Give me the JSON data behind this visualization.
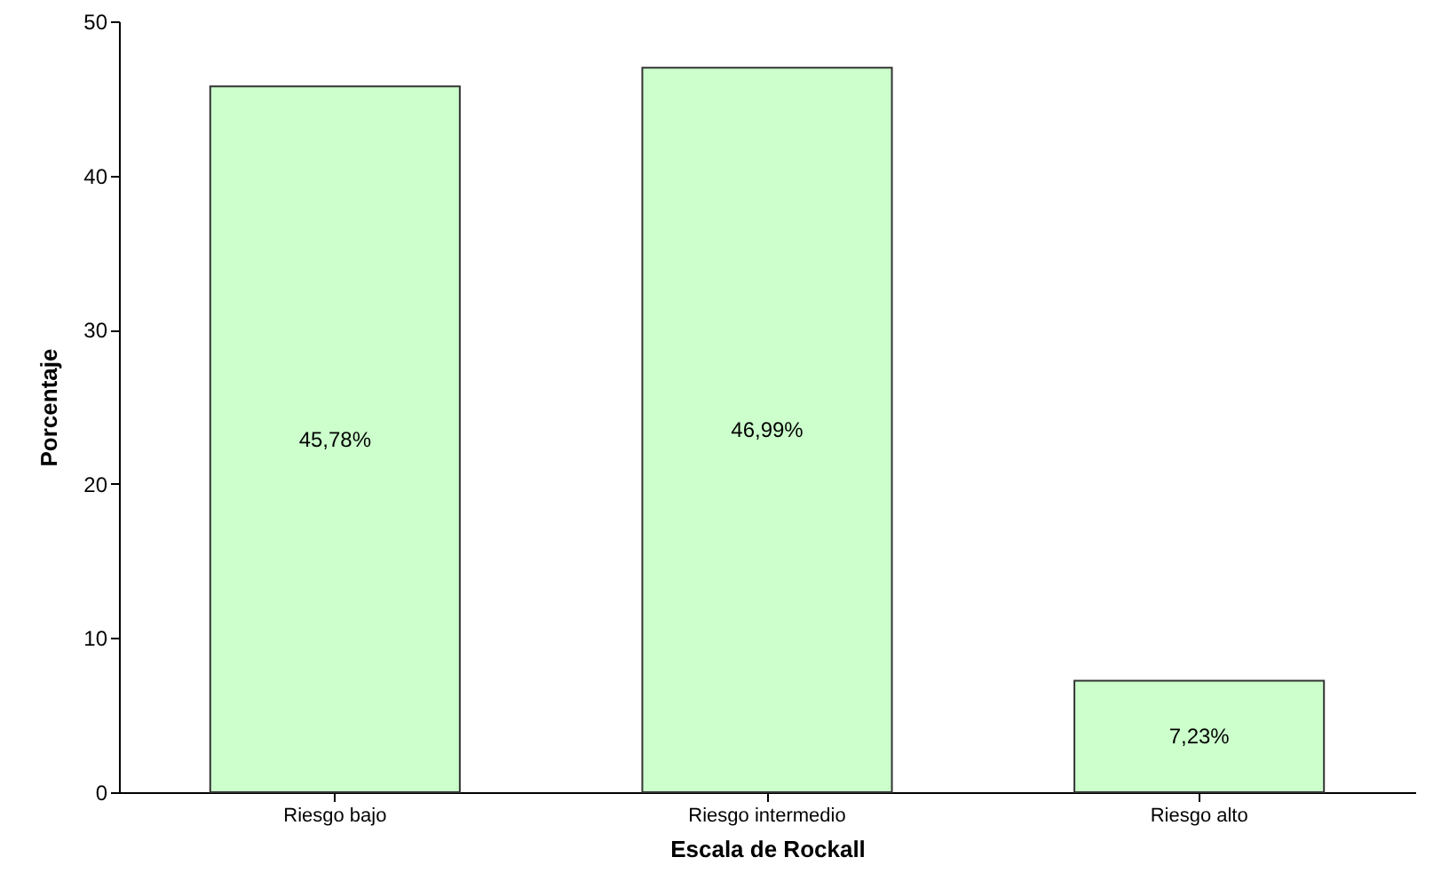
{
  "chart_data": {
    "type": "bar",
    "xlabel": "Escala de Rockall",
    "ylabel": "Porcentaje",
    "categories": [
      "Riesgo bajo",
      "Riesgo intermedio",
      "Riesgo alto"
    ],
    "values": [
      45.78,
      46.99,
      7.23
    ],
    "value_labels": [
      "45,78%",
      "46,99%",
      "7,23%"
    ],
    "color": "#ccffcc",
    "ylim": [
      0,
      50
    ],
    "yticks": [
      0,
      10,
      20,
      30,
      40,
      50
    ],
    "grid": false
  }
}
